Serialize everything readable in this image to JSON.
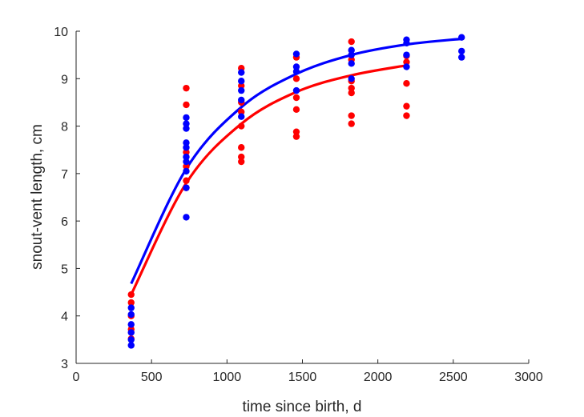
{
  "chart_data": {
    "type": "scatter",
    "xlabel": "time since birth, d",
    "ylabel": "snout-vent length, cm",
    "xlim": [
      0,
      3000
    ],
    "ylim": [
      3,
      10
    ],
    "xticks": [
      0,
      500,
      1000,
      1500,
      2000,
      2500,
      3000
    ],
    "yticks": [
      3,
      4,
      5,
      6,
      7,
      8,
      9,
      10
    ],
    "grid": false,
    "legend": "none",
    "series": [
      {
        "color": "#ff0000",
        "points": [
          [
            365,
            4.45
          ],
          [
            365,
            4.28
          ],
          [
            365,
            4.0
          ],
          [
            365,
            3.72
          ],
          [
            365,
            3.52
          ],
          [
            730,
            8.8
          ],
          [
            730,
            8.45
          ],
          [
            730,
            7.45
          ],
          [
            730,
            7.15
          ],
          [
            730,
            6.85
          ],
          [
            730,
            6.7
          ],
          [
            1095,
            9.22
          ],
          [
            1095,
            8.85
          ],
          [
            1095,
            8.5
          ],
          [
            1095,
            8.3
          ],
          [
            1095,
            8.0
          ],
          [
            1095,
            7.55
          ],
          [
            1095,
            7.35
          ],
          [
            1095,
            7.25
          ],
          [
            1460,
            9.45
          ],
          [
            1460,
            9.0
          ],
          [
            1460,
            8.6
          ],
          [
            1460,
            8.35
          ],
          [
            1460,
            7.88
          ],
          [
            1460,
            7.78
          ],
          [
            1825,
            9.78
          ],
          [
            1825,
            9.4
          ],
          [
            1825,
            8.95
          ],
          [
            1825,
            8.8
          ],
          [
            1825,
            8.7
          ],
          [
            1825,
            8.22
          ],
          [
            1825,
            8.05
          ],
          [
            2190,
            9.48
          ],
          [
            2190,
            9.35
          ],
          [
            2190,
            8.9
          ],
          [
            2190,
            8.42
          ],
          [
            2190,
            8.22
          ]
        ],
        "fit_x_range": [
          365,
          2190
        ],
        "fit_points": [
          [
            365,
            4.45
          ],
          [
            730,
            6.8
          ],
          [
            1095,
            8.05
          ],
          [
            1460,
            8.72
          ],
          [
            1825,
            9.07
          ],
          [
            2190,
            9.28
          ]
        ]
      },
      {
        "color": "#0000ff",
        "points": [
          [
            365,
            4.17
          ],
          [
            365,
            4.03
          ],
          [
            365,
            3.82
          ],
          [
            365,
            3.65
          ],
          [
            365,
            3.5
          ],
          [
            365,
            3.38
          ],
          [
            730,
            8.18
          ],
          [
            730,
            8.05
          ],
          [
            730,
            7.95
          ],
          [
            730,
            7.65
          ],
          [
            730,
            7.55
          ],
          [
            730,
            7.35
          ],
          [
            730,
            7.25
          ],
          [
            730,
            7.05
          ],
          [
            730,
            6.7
          ],
          [
            730,
            6.08
          ],
          [
            1095,
            9.13
          ],
          [
            1095,
            8.95
          ],
          [
            1095,
            8.75
          ],
          [
            1095,
            8.55
          ],
          [
            1095,
            8.2
          ],
          [
            1460,
            9.52
          ],
          [
            1460,
            9.25
          ],
          [
            1460,
            9.15
          ],
          [
            1460,
            8.75
          ],
          [
            1825,
            9.6
          ],
          [
            1825,
            9.5
          ],
          [
            1825,
            9.32
          ],
          [
            1825,
            9.0
          ],
          [
            2190,
            9.82
          ],
          [
            2190,
            9.75
          ],
          [
            2190,
            9.5
          ],
          [
            2190,
            9.25
          ],
          [
            2555,
            9.87
          ],
          [
            2555,
            9.58
          ],
          [
            2555,
            9.45
          ]
        ],
        "fit_x_range": [
          365,
          2555
        ],
        "fit_points": [
          [
            365,
            4.68
          ],
          [
            730,
            7.1
          ],
          [
            1095,
            8.4
          ],
          [
            1460,
            9.1
          ],
          [
            1825,
            9.5
          ],
          [
            2190,
            9.72
          ],
          [
            2555,
            9.84
          ]
        ]
      }
    ]
  }
}
